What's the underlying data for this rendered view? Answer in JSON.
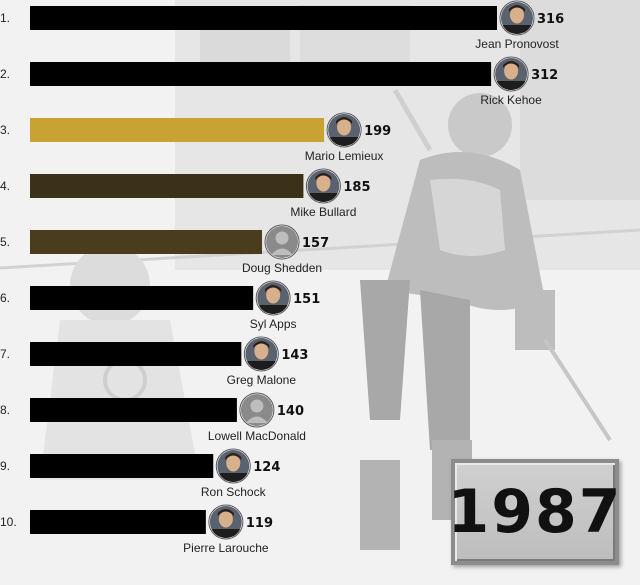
{
  "chart_data": {
    "type": "bar",
    "orientation": "horizontal",
    "title": "",
    "xlabel": "",
    "ylabel": "",
    "xlim": [
      0,
      316
    ],
    "grid": false,
    "legend": "none",
    "year": "1987",
    "ranks": [
      "1.",
      "2.",
      "3.",
      "4.",
      "5.",
      "6.",
      "7.",
      "8.",
      "9.",
      "10."
    ],
    "categories": [
      "Jean Pronovost",
      "Rick Kehoe",
      "Mario Lemieux",
      "Mike Bullard",
      "Doug Shedden",
      "Syl Apps",
      "Greg Malone",
      "Lowell MacDonald",
      "Ron Schock",
      "Pierre Larouche"
    ],
    "values": [
      316,
      312,
      199,
      185,
      157,
      151,
      143,
      140,
      124,
      119
    ],
    "bar_colors": [
      "#000000",
      "#000000",
      "#c8a232",
      "#3b3118",
      "#4a3d1d",
      "#000000",
      "#000000",
      "#000000",
      "#000000",
      "#000000"
    ],
    "avatar_types": [
      "photo",
      "photo",
      "photo",
      "photo",
      "silhouette",
      "photo",
      "photo",
      "silhouette",
      "photo",
      "photo"
    ]
  }
}
